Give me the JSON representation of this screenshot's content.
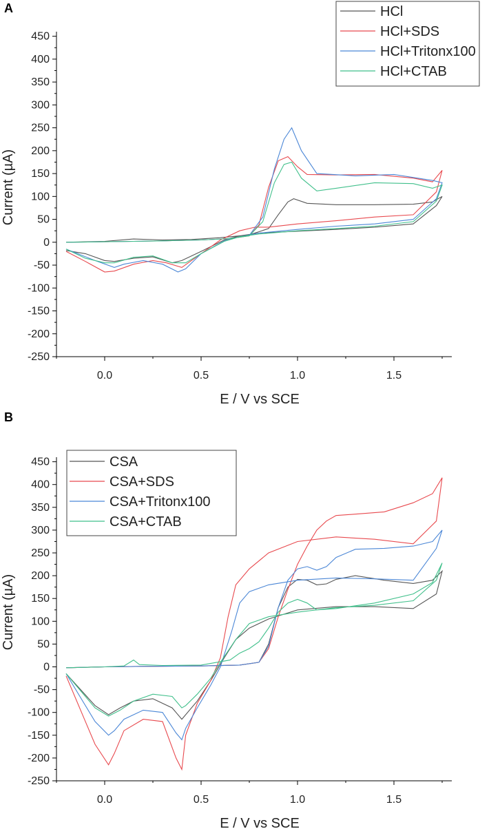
{
  "chart_data": [
    {
      "type": "line",
      "panel_label": "A",
      "xlabel": "E / V vs SCE",
      "ylabel": "Current (µA)",
      "xlim": [
        -0.25,
        1.8
      ],
      "ylim": [
        -250,
        460
      ],
      "xticks": [
        "0.0",
        "0.5",
        "1.0",
        "1.5"
      ],
      "xtick_values": [
        0,
        0.5,
        1.0,
        1.5
      ],
      "yticks": [
        "450",
        "400",
        "350",
        "300",
        "250",
        "200",
        "150",
        "100",
        "50",
        "0",
        "-50",
        "-100",
        "-150",
        "-200",
        "-250"
      ],
      "ytick_values": [
        450,
        400,
        350,
        300,
        250,
        200,
        150,
        100,
        50,
        0,
        -50,
        -100,
        -150,
        -200,
        -250
      ],
      "legend_position": "top-right",
      "series": [
        {
          "name": "HCl",
          "color": "#555555",
          "x": [
            -0.2,
            0.0,
            0.15,
            0.3,
            0.45,
            0.6,
            0.75,
            0.85,
            0.9,
            0.95,
            0.98,
            1.05,
            1.2,
            1.4,
            1.6,
            1.7,
            1.75,
            1.72,
            1.6,
            1.4,
            1.2,
            1.0,
            0.8,
            0.7,
            0.62,
            0.5,
            0.4,
            0.35,
            0.25,
            0.15,
            0.05,
            0.0,
            -0.1,
            -0.2
          ],
          "y": [
            0,
            2,
            7,
            5,
            6,
            10,
            16,
            30,
            60,
            88,
            95,
            85,
            82,
            82,
            83,
            88,
            100,
            80,
            40,
            33,
            28,
            24,
            20,
            14,
            5,
            -20,
            -40,
            -45,
            -32,
            -35,
            -42,
            -40,
            -25,
            -18
          ]
        },
        {
          "name": "HCl+SDS",
          "color": "#e8484d",
          "x": [
            -0.2,
            0.0,
            0.15,
            0.3,
            0.5,
            0.65,
            0.75,
            0.8,
            0.85,
            0.9,
            0.95,
            1.0,
            1.05,
            1.2,
            1.4,
            1.6,
            1.7,
            1.75,
            1.72,
            1.6,
            1.4,
            1.2,
            1.0,
            0.85,
            0.78,
            0.7,
            0.6,
            0.5,
            0.4,
            0.32,
            0.25,
            0.15,
            0.05,
            0.0,
            -0.1,
            -0.2
          ],
          "y": [
            0,
            1,
            2,
            3,
            5,
            8,
            14,
            38,
            120,
            178,
            187,
            165,
            148,
            147,
            148,
            140,
            132,
            157,
            110,
            60,
            55,
            47,
            40,
            33,
            33,
            25,
            5,
            -25,
            -55,
            -45,
            -40,
            -48,
            -63,
            -65,
            -42,
            -20
          ]
        },
        {
          "name": "HCl+Tritonx100",
          "color": "#4a86d6",
          "x": [
            -0.2,
            0.0,
            0.15,
            0.3,
            0.5,
            0.65,
            0.75,
            0.82,
            0.88,
            0.93,
            0.97,
            1.02,
            1.1,
            1.3,
            1.5,
            1.7,
            1.75,
            1.72,
            1.6,
            1.4,
            1.2,
            1.0,
            0.8,
            0.7,
            0.62,
            0.5,
            0.42,
            0.38,
            0.3,
            0.2,
            0.1,
            0.05,
            -0.05,
            -0.2
          ],
          "y": [
            0,
            1,
            2,
            3,
            5,
            8,
            15,
            55,
            160,
            225,
            250,
            200,
            150,
            145,
            148,
            135,
            130,
            95,
            50,
            40,
            35,
            28,
            20,
            12,
            3,
            -25,
            -58,
            -65,
            -48,
            -40,
            -48,
            -55,
            -40,
            -15
          ]
        },
        {
          "name": "HCl+CTAB",
          "color": "#3fbf8a",
          "x": [
            -0.2,
            0.0,
            0.15,
            0.3,
            0.5,
            0.65,
            0.75,
            0.82,
            0.88,
            0.93,
            0.97,
            1.02,
            1.1,
            1.2,
            1.4,
            1.6,
            1.7,
            1.75,
            1.72,
            1.6,
            1.4,
            1.2,
            1.0,
            0.8,
            0.7,
            0.62,
            0.5,
            0.42,
            0.35,
            0.25,
            0.15,
            0.05,
            0.0,
            -0.1,
            -0.2
          ],
          "y": [
            0,
            1,
            2,
            3,
            5,
            8,
            14,
            45,
            130,
            170,
            175,
            140,
            112,
            118,
            130,
            128,
            118,
            125,
            90,
            45,
            35,
            30,
            25,
            18,
            12,
            2,
            -25,
            -45,
            -45,
            -30,
            -33,
            -45,
            -45,
            -35,
            -15
          ]
        }
      ]
    },
    {
      "type": "line",
      "panel_label": "B",
      "xlabel": "E / V vs SCE",
      "ylabel": "Current (µA)",
      "xlim": [
        -0.25,
        1.8
      ],
      "ylim": [
        -250,
        460
      ],
      "xticks": [
        "0.0",
        "0.5",
        "1.0",
        "1.5"
      ],
      "xtick_values": [
        0,
        0.5,
        1.0,
        1.5
      ],
      "yticks": [
        "450",
        "400",
        "350",
        "300",
        "250",
        "200",
        "150",
        "100",
        "50",
        "0",
        "-50",
        "-100",
        "-150",
        "-200",
        "-250"
      ],
      "ytick_values": [
        450,
        400,
        350,
        300,
        250,
        200,
        150,
        100,
        50,
        0,
        -50,
        -100,
        -150,
        -200,
        -250
      ],
      "legend_position": "top-left",
      "series": [
        {
          "name": "CSA",
          "color": "#555555",
          "x": [
            -0.2,
            0.0,
            0.2,
            0.5,
            0.7,
            0.8,
            0.85,
            0.9,
            0.95,
            1.0,
            1.05,
            1.1,
            1.15,
            1.2,
            1.3,
            1.45,
            1.6,
            1.7,
            1.75,
            1.72,
            1.6,
            1.4,
            1.2,
            1.0,
            0.85,
            0.75,
            0.68,
            0.62,
            0.55,
            0.48,
            0.42,
            0.4,
            0.35,
            0.25,
            0.15,
            0.08,
            0.02,
            -0.05,
            -0.2
          ],
          "y": [
            -2,
            0,
            1,
            2,
            4,
            10,
            50,
            130,
            175,
            192,
            190,
            180,
            182,
            192,
            200,
            190,
            183,
            190,
            210,
            160,
            128,
            132,
            132,
            125,
            105,
            85,
            60,
            20,
            -30,
            -75,
            -105,
            -115,
            -90,
            -70,
            -75,
            -90,
            -105,
            -85,
            -15
          ]
        },
        {
          "name": "CSA+SDS",
          "color": "#e8484d",
          "x": [
            -0.2,
            0.0,
            0.2,
            0.5,
            0.7,
            0.8,
            0.85,
            0.9,
            0.95,
            1.0,
            1.05,
            1.1,
            1.15,
            1.2,
            1.3,
            1.45,
            1.6,
            1.7,
            1.75,
            1.72,
            1.6,
            1.4,
            1.2,
            1.0,
            0.85,
            0.75,
            0.68,
            0.64,
            0.6,
            0.55,
            0.48,
            0.42,
            0.4,
            0.37,
            0.3,
            0.2,
            0.1,
            0.05,
            0.02,
            -0.05,
            -0.2
          ],
          "y": [
            -2,
            0,
            1,
            2,
            4,
            10,
            40,
            110,
            170,
            225,
            265,
            300,
            320,
            332,
            335,
            340,
            360,
            380,
            415,
            320,
            270,
            280,
            285,
            275,
            250,
            215,
            180,
            110,
            20,
            -30,
            -80,
            -150,
            -225,
            -200,
            -120,
            -115,
            -140,
            -190,
            -215,
            -170,
            -20
          ]
        },
        {
          "name": "CSA+Tritonx100",
          "color": "#4a86d6",
          "x": [
            -0.2,
            0.0,
            0.2,
            0.5,
            0.7,
            0.8,
            0.85,
            0.9,
            0.95,
            1.0,
            1.05,
            1.1,
            1.15,
            1.2,
            1.3,
            1.45,
            1.6,
            1.7,
            1.75,
            1.72,
            1.6,
            1.4,
            1.2,
            1.0,
            0.85,
            0.75,
            0.7,
            0.66,
            0.6,
            0.55,
            0.48,
            0.42,
            0.4,
            0.37,
            0.3,
            0.2,
            0.1,
            0.05,
            0.02,
            -0.05,
            -0.2
          ],
          "y": [
            -2,
            0,
            1,
            2,
            4,
            10,
            45,
            130,
            190,
            215,
            220,
            212,
            220,
            240,
            258,
            260,
            265,
            275,
            300,
            260,
            190,
            193,
            195,
            190,
            180,
            165,
            140,
            80,
            0,
            -40,
            -90,
            -135,
            -160,
            -145,
            -100,
            -95,
            -115,
            -140,
            -150,
            -120,
            -15
          ]
        },
        {
          "name": "CSA+CTAB",
          "color": "#3fbf8a",
          "x": [
            -0.2,
            0.0,
            0.1,
            0.15,
            0.18,
            0.3,
            0.5,
            0.65,
            0.7,
            0.75,
            0.8,
            0.85,
            0.9,
            0.95,
            1.0,
            1.05,
            1.1,
            1.2,
            1.4,
            1.6,
            1.7,
            1.75,
            1.72,
            1.6,
            1.4,
            1.2,
            1.0,
            0.85,
            0.75,
            0.68,
            0.6,
            0.55,
            0.48,
            0.42,
            0.4,
            0.35,
            0.25,
            0.15,
            0.08,
            0.02,
            -0.05,
            -0.2
          ],
          "y": [
            -2,
            0,
            2,
            15,
            5,
            3,
            4,
            15,
            30,
            40,
            55,
            85,
            120,
            140,
            148,
            140,
            125,
            128,
            140,
            160,
            185,
            228,
            190,
            145,
            135,
            130,
            120,
            110,
            95,
            60,
            10,
            -25,
            -60,
            -85,
            -90,
            -65,
            -60,
            -75,
            -95,
            -108,
            -90,
            -15
          ]
        }
      ]
    }
  ]
}
